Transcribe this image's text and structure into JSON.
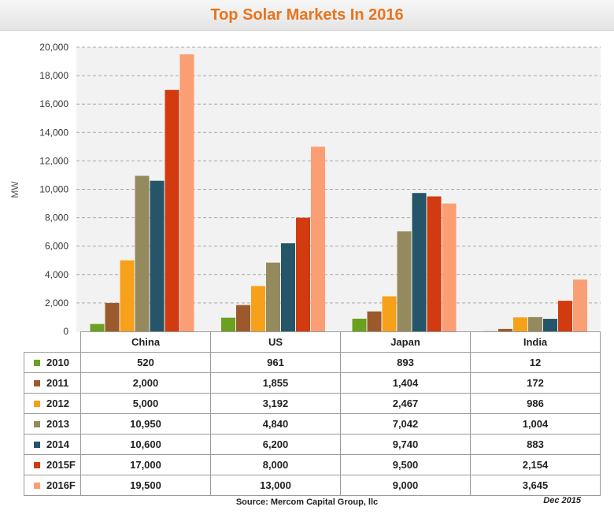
{
  "chart_data": {
    "type": "bar",
    "title": "Top Solar Markets In 2016",
    "ylabel": "MW",
    "xlabel": "",
    "ylim": [
      0,
      20000
    ],
    "yticks": [
      0,
      2000,
      4000,
      6000,
      8000,
      10000,
      12000,
      14000,
      16000,
      18000,
      20000
    ],
    "ytick_labels": [
      "0",
      "2,000",
      "4,000",
      "6,000",
      "8,000",
      "10,000",
      "12,000",
      "14,000",
      "16,000",
      "18,000",
      "20,000"
    ],
    "grid": true,
    "legend": "table-below",
    "categories": [
      "China",
      "US",
      "Japan",
      "India"
    ],
    "series": [
      {
        "name": "2010",
        "color": "#6aa121",
        "values": [
          520,
          961,
          893,
          12
        ],
        "labels": [
          "520",
          "961",
          "893",
          "12"
        ]
      },
      {
        "name": "2011",
        "color": "#9c5a2c",
        "values": [
          2000,
          1855,
          1404,
          172
        ],
        "labels": [
          "2,000",
          "1,855",
          "1,404",
          "172"
        ]
      },
      {
        "name": "2012",
        "color": "#f7a11a",
        "values": [
          5000,
          3192,
          2467,
          986
        ],
        "labels": [
          "5,000",
          "3,192",
          "2,467",
          "986"
        ]
      },
      {
        "name": "2013",
        "color": "#948a5e",
        "values": [
          10950,
          4840,
          7042,
          1004
        ],
        "labels": [
          "10,950",
          "4,840",
          "7,042",
          "1,004"
        ]
      },
      {
        "name": "2014",
        "color": "#245568",
        "values": [
          10600,
          6200,
          9740,
          883
        ],
        "labels": [
          "10,600",
          "6,200",
          "9,740",
          "883"
        ]
      },
      {
        "name": "2015F",
        "color": "#d23a10",
        "values": [
          17000,
          8000,
          9500,
          2154
        ],
        "labels": [
          "17,000",
          "8,000",
          "9,500",
          "2,154"
        ]
      },
      {
        "name": "2016F",
        "color": "#fb9e74",
        "values": [
          19500,
          13000,
          9000,
          3645
        ],
        "labels": [
          "19,500",
          "13,000",
          "9,000",
          "3,645"
        ]
      }
    ]
  },
  "source": "Source: Mercom Capital Group, llc",
  "date": "Dec 2015"
}
